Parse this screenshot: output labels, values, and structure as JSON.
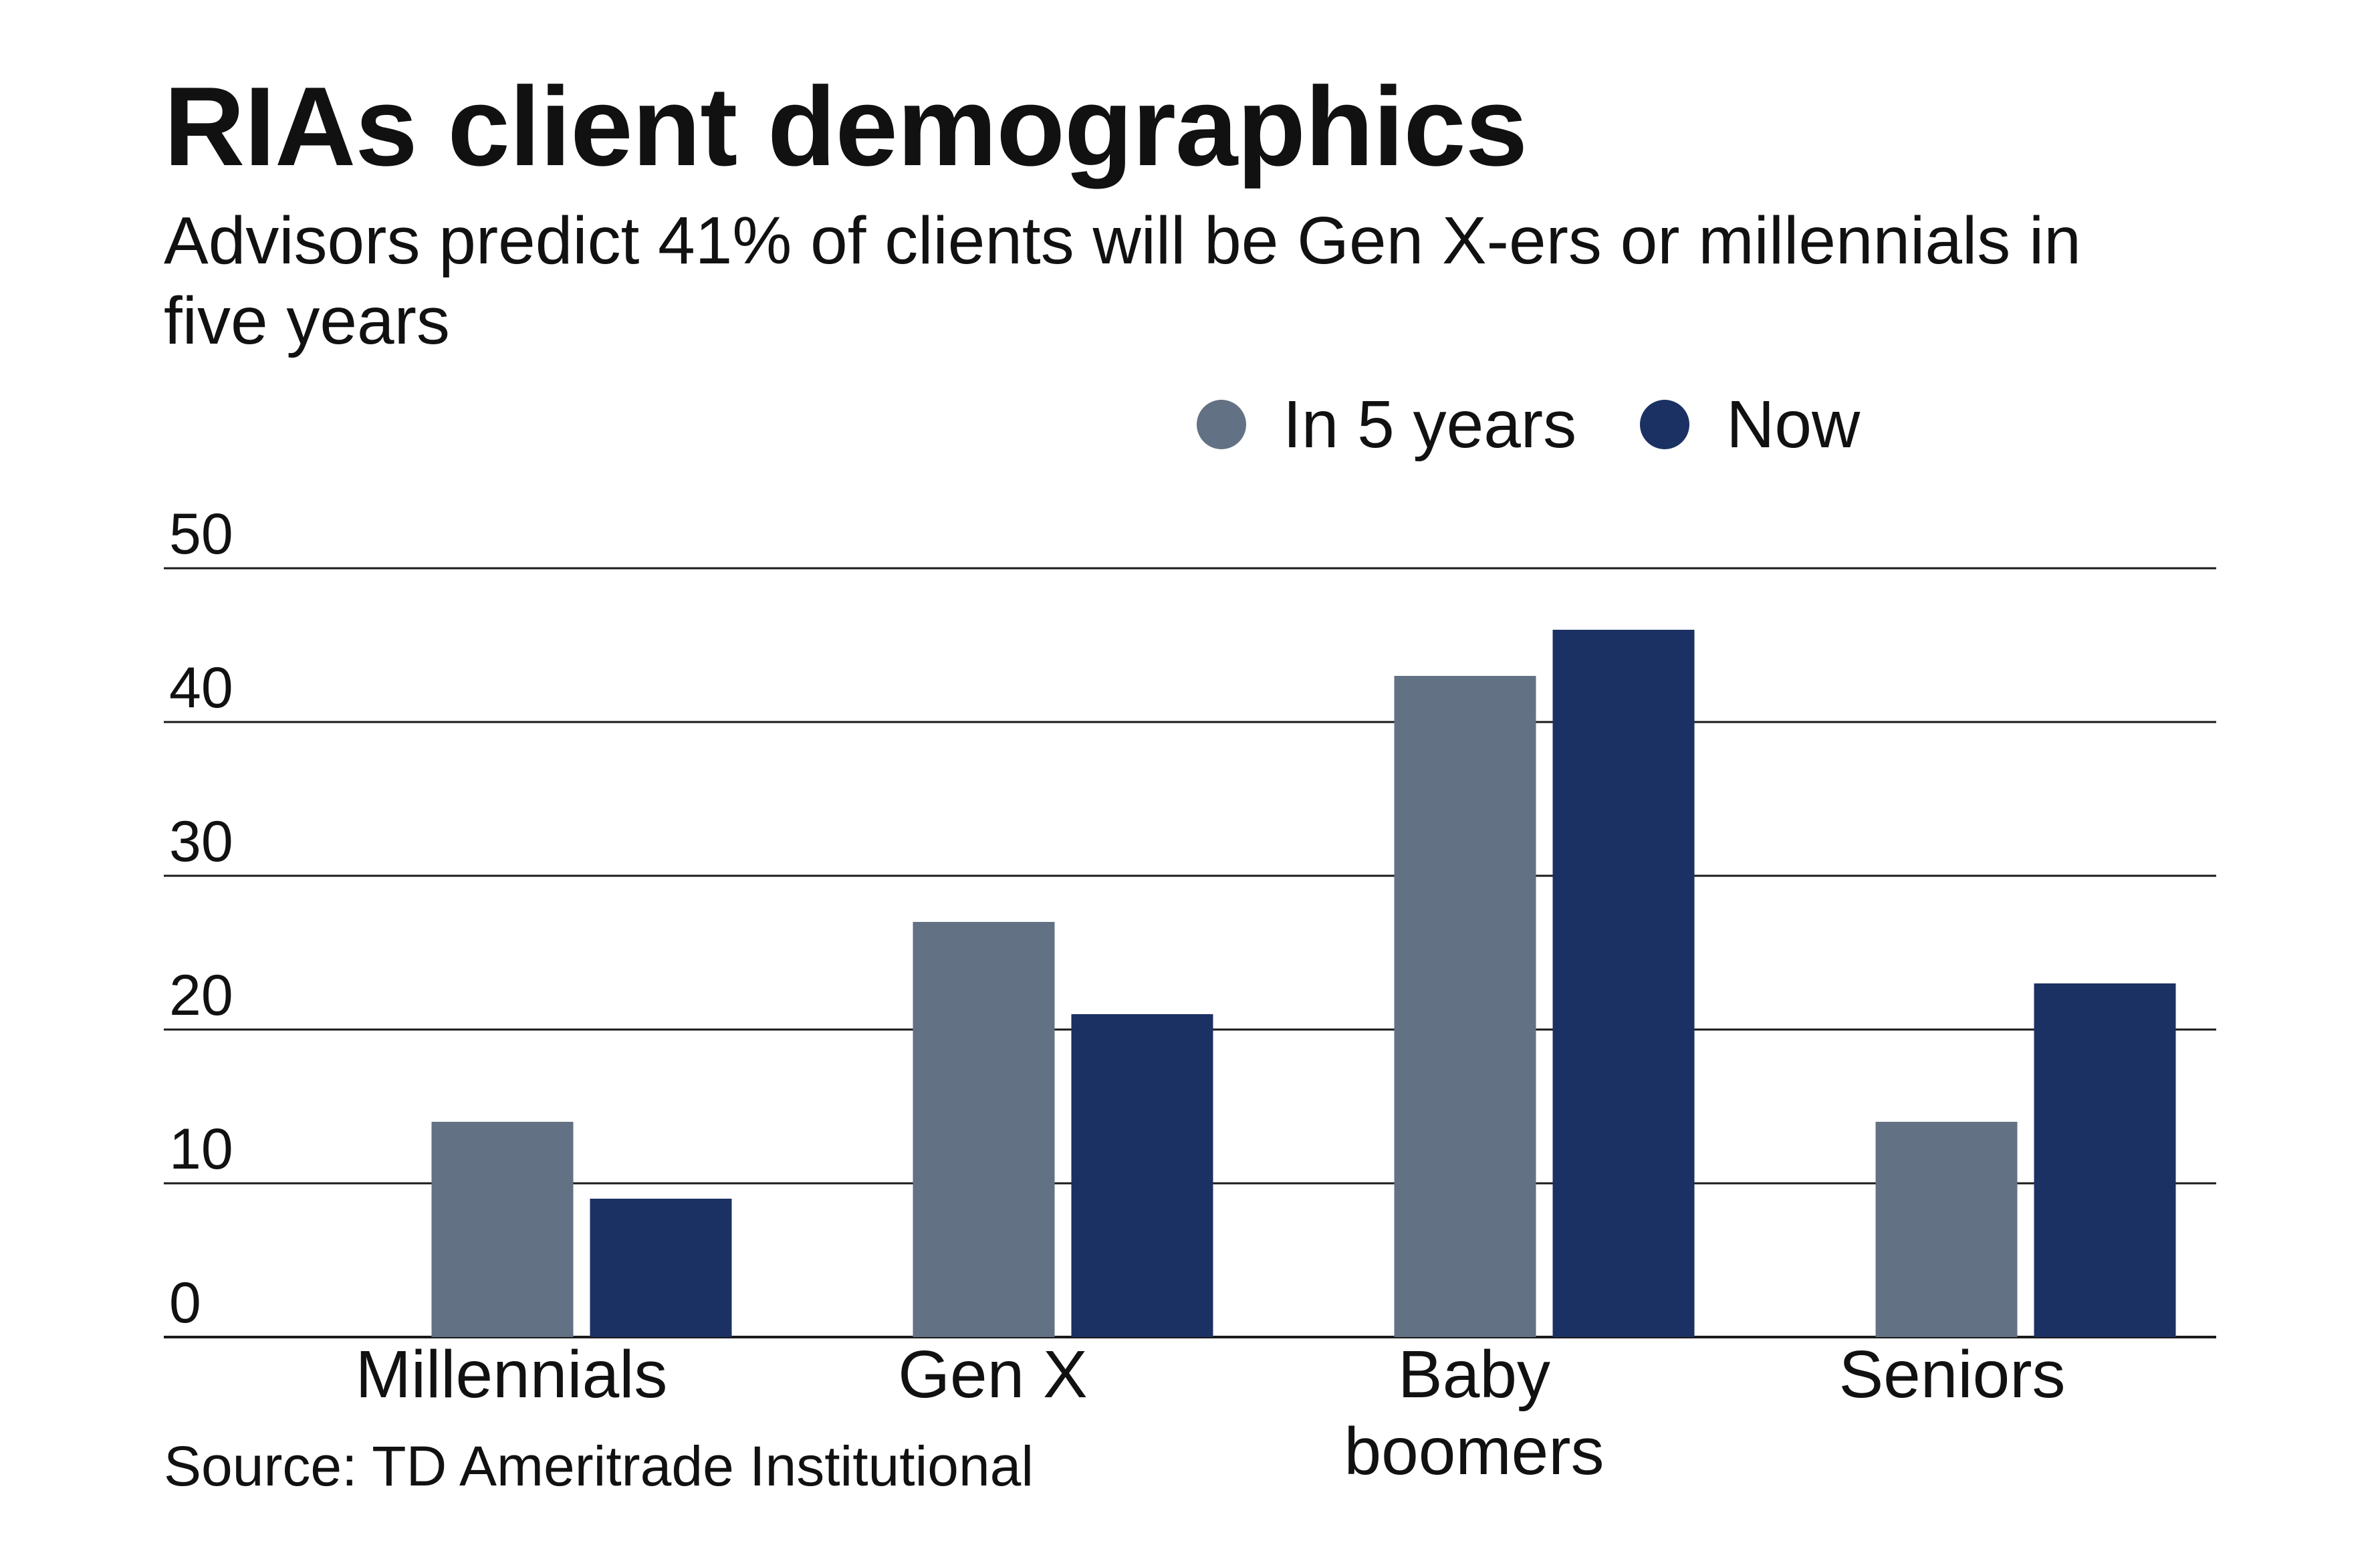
{
  "chart_data": {
    "type": "bar",
    "title": "RIAs client demographics",
    "subtitle": "Advisors predict 41% of clients will be Gen X-ers or millennials in five years",
    "categories": [
      "Millennials",
      "Gen X",
      "Baby boomers",
      "Seniors"
    ],
    "category_lines": [
      [
        "Millennials"
      ],
      [
        "Gen X"
      ],
      [
        "Baby",
        "boomers"
      ],
      [
        "Seniors"
      ]
    ],
    "series": [
      {
        "name": "In 5 years",
        "color": "#637184",
        "values": [
          14,
          27,
          43,
          14
        ]
      },
      {
        "name": "Now",
        "color": "#1b3163",
        "values": [
          9,
          21,
          46,
          23
        ]
      }
    ],
    "ylim": [
      0,
      50
    ],
    "yticks": [
      0,
      10,
      20,
      30,
      40,
      50
    ],
    "xlabel": "",
    "ylabel": "",
    "grid": true,
    "legend_position": "top-right",
    "source": "Source: TD Ameritrade Institutional"
  }
}
